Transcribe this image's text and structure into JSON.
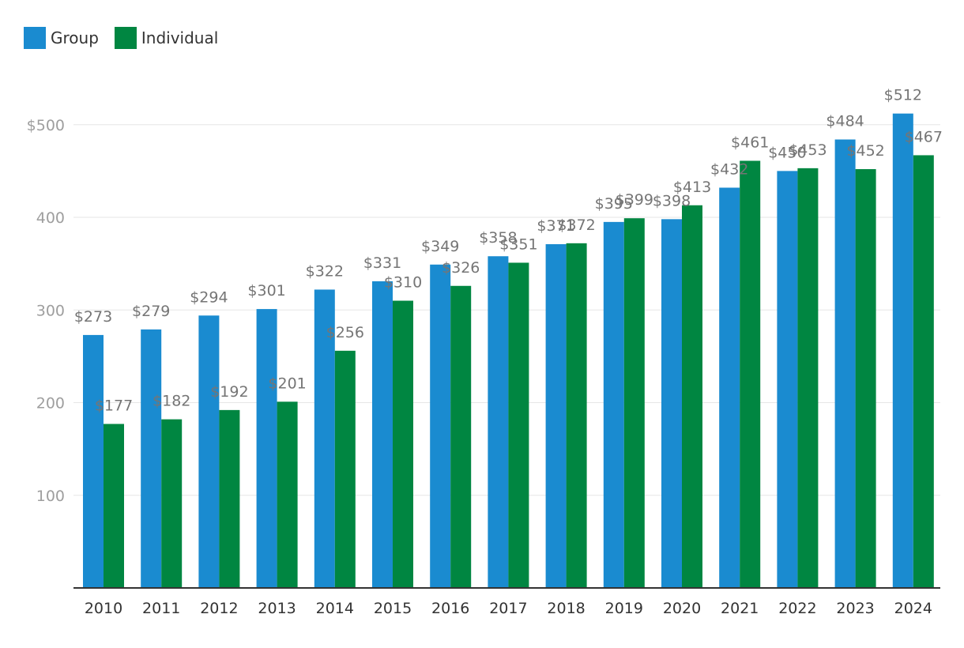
{
  "chart_data": {
    "type": "bar",
    "categories": [
      "2010",
      "2011",
      "2012",
      "2013",
      "2014",
      "2015",
      "2016",
      "2017",
      "2018",
      "2019",
      "2020",
      "2021",
      "2022",
      "2023",
      "2024"
    ],
    "series": [
      {
        "name": "Group",
        "color": "#1a8bd0",
        "values": [
          273,
          279,
          294,
          301,
          322,
          331,
          349,
          358,
          371,
          395,
          398,
          432,
          450,
          484,
          512
        ]
      },
      {
        "name": "Individual",
        "color": "#008641",
        "values": [
          177,
          182,
          192,
          201,
          256,
          310,
          326,
          351,
          372,
          399,
          413,
          461,
          453,
          452,
          467
        ]
      }
    ],
    "data_labels": {
      "Group": [
        "$273",
        "$279",
        "$294",
        "$301",
        "$322",
        "$331",
        "$349",
        "$358",
        "$371",
        "$395",
        "$398",
        "$432",
        "$450",
        "$484",
        "$512"
      ],
      "Individual": [
        "$177",
        "$182",
        "$192",
        "$201",
        "$256",
        "$310",
        "$326",
        "$351",
        "$372",
        "$399",
        "$413",
        "$461",
        "$453",
        "$452",
        "$467"
      ]
    },
    "y_ticks": [
      {
        "value": 100,
        "label": "100"
      },
      {
        "value": 200,
        "label": "200"
      },
      {
        "value": 300,
        "label": "300"
      },
      {
        "value": 400,
        "label": "400"
      },
      {
        "value": 500,
        "label": "$500"
      }
    ],
    "ylim": [
      0,
      500
    ],
    "grid": true,
    "legend_position": "top-left",
    "title": "",
    "xlabel": "",
    "ylabel": ""
  }
}
